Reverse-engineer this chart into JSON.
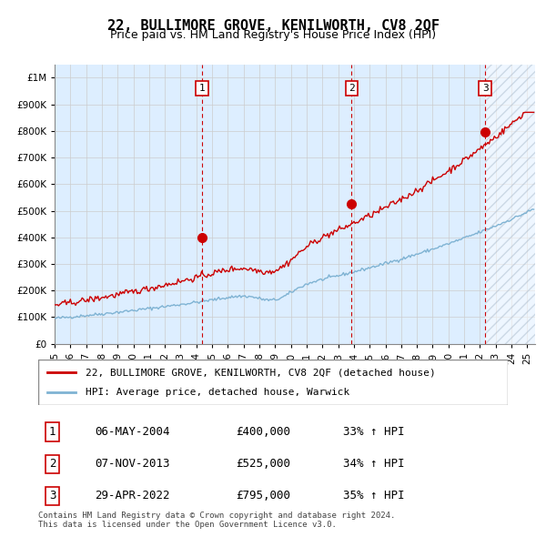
{
  "title": "22, BULLIMORE GROVE, KENILWORTH, CV8 2QF",
  "subtitle": "Price paid vs. HM Land Registry's House Price Index (HPI)",
  "ylabel_ticks": [
    "£0",
    "£100K",
    "£200K",
    "£300K",
    "£400K",
    "£500K",
    "£600K",
    "£700K",
    "£800K",
    "£900K",
    "£1M"
  ],
  "ytick_vals": [
    0,
    100000,
    200000,
    300000,
    400000,
    500000,
    600000,
    700000,
    800000,
    900000,
    1000000
  ],
  "ylim": [
    0,
    1050000
  ],
  "xlim_start": 1995.0,
  "xlim_end": 2025.5,
  "sale_dates": [
    2004.35,
    2013.85,
    2022.33
  ],
  "sale_prices": [
    400000,
    525000,
    795000
  ],
  "sale_labels": [
    "1",
    "2",
    "3"
  ],
  "hpi_line_color": "#7fb3d3",
  "price_line_color": "#cc0000",
  "sale_dot_color": "#cc0000",
  "vline_color": "#cc0000",
  "background_fill_color": "#ddeeff",
  "hatch_color": "#aabbcc",
  "legend_label_red": "22, BULLIMORE GROVE, KENILWORTH, CV8 2QF (detached house)",
  "legend_label_blue": "HPI: Average price, detached house, Warwick",
  "table_rows": [
    {
      "num": "1",
      "date": "06-MAY-2004",
      "price": "£400,000",
      "pct": "33% ↑ HPI"
    },
    {
      "num": "2",
      "date": "07-NOV-2013",
      "price": "£525,000",
      "pct": "34% ↑ HPI"
    },
    {
      "num": "3",
      "date": "29-APR-2022",
      "price": "£795,000",
      "pct": "35% ↑ HPI"
    }
  ],
  "footnote": "Contains HM Land Registry data © Crown copyright and database right 2024.\nThis data is licensed under the Open Government Licence v3.0.",
  "grid_color": "#cccccc",
  "title_fontsize": 11,
  "subtitle_fontsize": 9,
  "tick_fontsize": 7.5,
  "legend_fontsize": 8
}
